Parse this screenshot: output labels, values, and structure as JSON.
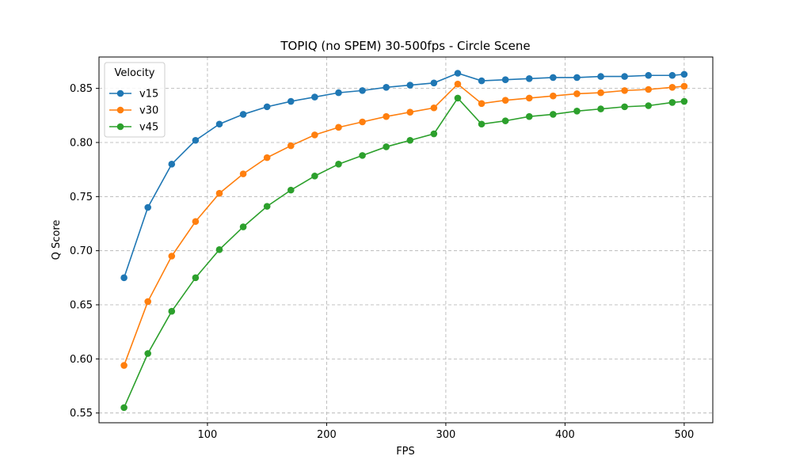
{
  "chart_data": {
    "type": "line",
    "title": "TOPIQ (no SPEM) 30-500fps - Circle Scene",
    "xlabel": "FPS",
    "ylabel": "Q Score",
    "xlim": [
      9,
      524
    ],
    "ylim": [
      0.541,
      0.879
    ],
    "xticks": [
      100,
      200,
      300,
      400,
      500
    ],
    "yticks": [
      0.55,
      0.6,
      0.65,
      0.7,
      0.75,
      0.8,
      0.85
    ],
    "xtick_labels": [
      "100",
      "200",
      "300",
      "400",
      "500"
    ],
    "ytick_labels": [
      "0.55",
      "0.60",
      "0.65",
      "0.70",
      "0.75",
      "0.80",
      "0.85"
    ],
    "grid": true,
    "legend": {
      "title": "Velocity",
      "placement": "top-left"
    },
    "x": [
      30,
      50,
      70,
      90,
      110,
      130,
      150,
      170,
      190,
      210,
      230,
      250,
      270,
      290,
      310,
      330,
      350,
      370,
      390,
      410,
      430,
      450,
      470,
      490,
      500
    ],
    "series": [
      {
        "name": "v15",
        "color": "#1f77b4",
        "values": [
          0.675,
          0.74,
          0.78,
          0.802,
          0.817,
          0.826,
          0.833,
          0.838,
          0.842,
          0.846,
          0.848,
          0.851,
          0.853,
          0.855,
          0.864,
          0.857,
          0.858,
          0.859,
          0.86,
          0.86,
          0.861,
          0.861,
          0.862,
          0.862,
          0.863
        ]
      },
      {
        "name": "v30",
        "color": "#ff7f0e",
        "values": [
          0.594,
          0.653,
          0.695,
          0.727,
          0.753,
          0.771,
          0.786,
          0.797,
          0.807,
          0.814,
          0.819,
          0.824,
          0.828,
          0.832,
          0.854,
          0.836,
          0.839,
          0.841,
          0.843,
          0.845,
          0.846,
          0.848,
          0.849,
          0.851,
          0.852
        ]
      },
      {
        "name": "v45",
        "color": "#2ca02c",
        "values": [
          0.555,
          0.605,
          0.644,
          0.675,
          0.701,
          0.722,
          0.741,
          0.756,
          0.769,
          0.78,
          0.788,
          0.796,
          0.802,
          0.808,
          0.841,
          0.817,
          0.82,
          0.824,
          0.826,
          0.829,
          0.831,
          0.833,
          0.834,
          0.837,
          0.838
        ]
      }
    ]
  }
}
